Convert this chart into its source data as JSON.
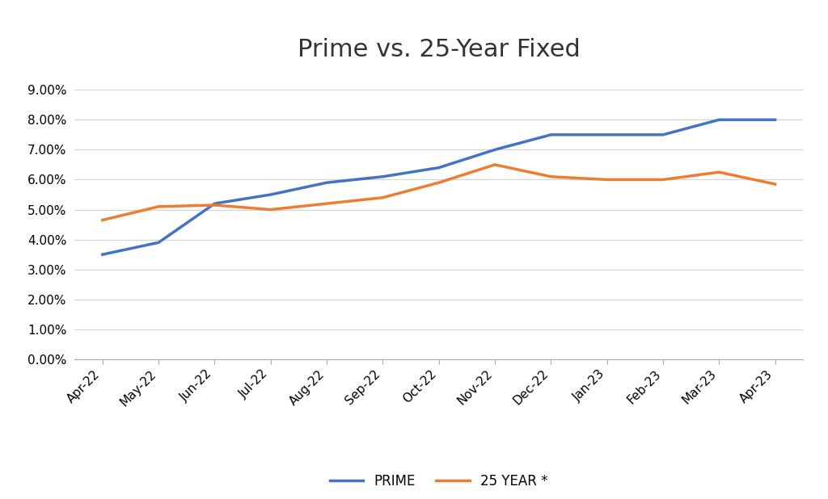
{
  "title": "Prime vs. 25-Year Fixed",
  "categories": [
    "Apr-22",
    "May-22",
    "Jun-22",
    "Jul-22",
    "Aug-22",
    "Sep-22",
    "Oct-22",
    "Nov-22",
    "Dec-22",
    "Jan-23",
    "Feb-23",
    "Mar-23",
    "Apr-23"
  ],
  "prime": [
    0.035,
    0.039,
    0.052,
    0.055,
    0.059,
    0.061,
    0.064,
    0.07,
    0.075,
    0.075,
    0.075,
    0.08,
    0.08
  ],
  "year25": [
    0.0465,
    0.051,
    0.0515,
    0.05,
    0.052,
    0.054,
    0.059,
    0.065,
    0.061,
    0.06,
    0.06,
    0.0625,
    0.0585
  ],
  "prime_color": "#4472C4",
  "year25_color": "#ED7D31",
  "prime_label": "PRIME",
  "year25_label": "25 YEAR *",
  "line_width": 2.5,
  "ylim": [
    0.0,
    0.09
  ],
  "yticks": [
    0.0,
    0.01,
    0.02,
    0.03,
    0.04,
    0.05,
    0.06,
    0.07,
    0.08,
    0.09
  ],
  "background_color": "#FFFFFF",
  "title_fontsize": 22,
  "tick_fontsize": 11,
  "legend_fontsize": 12,
  "grid_color": "#D3D3D3"
}
